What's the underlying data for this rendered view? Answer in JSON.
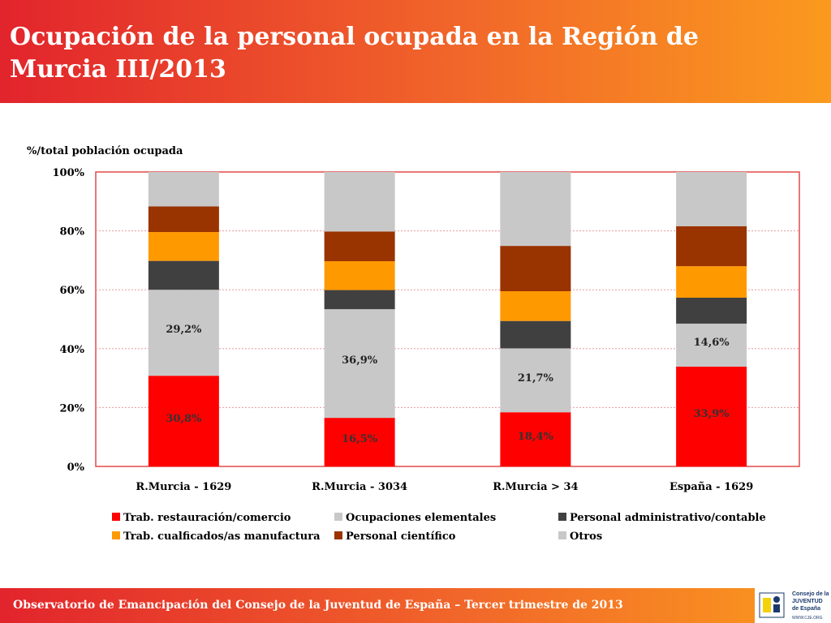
{
  "header": {
    "title": "Ocupación de la personal ocupada en la Región de Murcia III/2013"
  },
  "footer": {
    "text": "Observatorio de Emancipación del Consejo de la Juventud de España – Tercer trimestre de 2013",
    "logo_line1": "Consejo de la",
    "logo_line2": "JUVENTUD",
    "logo_line3": "de España",
    "logo_url": "WWW.CJE.ORG"
  },
  "chart_data": {
    "type": "bar",
    "stacked": true,
    "ylabel": "%/total población ocupada",
    "ylim": [
      0,
      100
    ],
    "yticks": [
      "0%",
      "20%",
      "40%",
      "60%",
      "80%",
      "100%"
    ],
    "grid": true,
    "categories": [
      "R.Murcia - 1629",
      "R.Murcia - 3034",
      "R.Murcia > 34",
      "España - 1629"
    ],
    "series": [
      {
        "name": "Trab. restauración/comercio",
        "color": "#ff0000",
        "values": [
          30.8,
          16.5,
          18.4,
          33.9
        ],
        "labels": [
          "30,8%",
          "16,5%",
          "18,4%",
          "33,9%"
        ]
      },
      {
        "name": "Ocupaciones elementales",
        "color": "#c8c8c8",
        "values": [
          29.2,
          36.9,
          21.7,
          14.6
        ],
        "labels": [
          "29,2%",
          "36,9%",
          "21,7%",
          "14,6%"
        ]
      },
      {
        "name": "Personal administrativo/contable",
        "color": "#404040",
        "values": [
          9.8,
          6.5,
          9.3,
          8.8
        ]
      },
      {
        "name": "Trab. cualficados/as manufactura",
        "color": "#ff9900",
        "values": [
          9.8,
          9.8,
          10.1,
          10.7
        ]
      },
      {
        "name": "Personal científico",
        "color": "#993300",
        "values": [
          8.7,
          10.1,
          15.4,
          13.6
        ]
      },
      {
        "name": "Otros",
        "color": "#c8c8c8",
        "values": [
          11.7,
          20.2,
          25.1,
          18.4
        ]
      }
    ],
    "legend_position": "bottom"
  }
}
